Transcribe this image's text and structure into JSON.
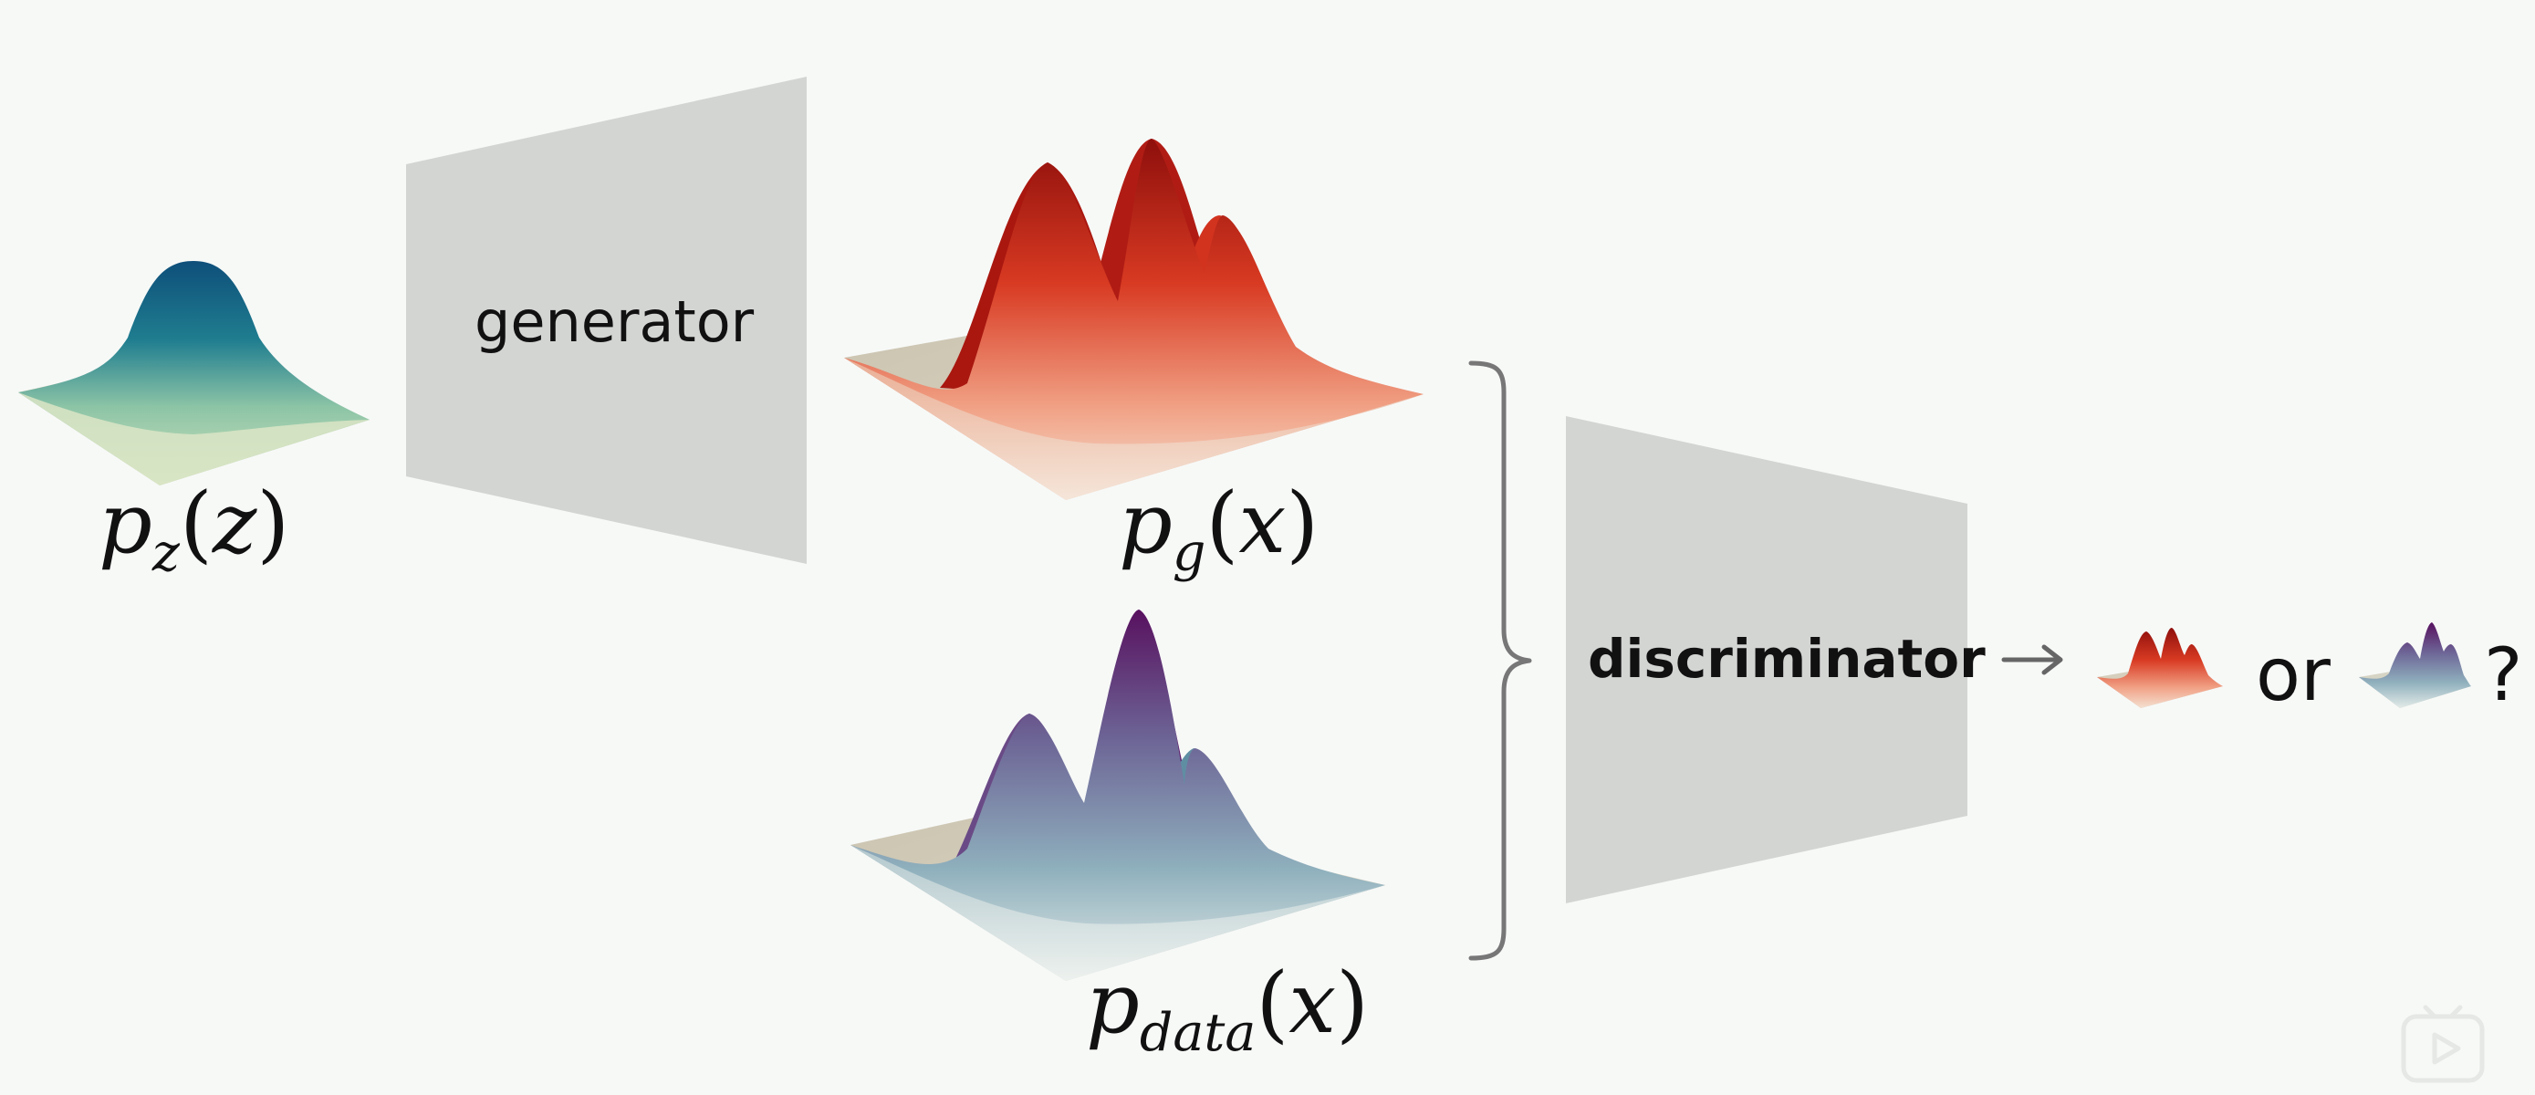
{
  "labels": {
    "pz_var": "p",
    "pz_sub": "z",
    "pz_arg": "z",
    "pg_var": "p",
    "pg_sub": "g",
    "pg_arg": "x",
    "pdata_var": "p",
    "pdata_sub": "data",
    "pdata_arg": "x",
    "open_paren": "(",
    "close_paren": ")"
  },
  "blocks": {
    "generator": "generator",
    "discriminator": "discriminator"
  },
  "output": {
    "or_text": "or",
    "question_mark": "?"
  },
  "colors": {
    "background": "#f7f9f7",
    "block_fill": "#d3d5d3",
    "noise_peak": "#16607f",
    "noise_base": "#c5ddb4",
    "generated_peak": "#a51410",
    "generated_base": "#f0d8c8",
    "data_peak": "#5c1a6a",
    "data_base": "#dde6e4",
    "plane": "#cfc9b6",
    "brace": "#777777"
  },
  "icons": {
    "arrow": "right-arrow-icon",
    "watermark": "play-watermark-icon"
  }
}
